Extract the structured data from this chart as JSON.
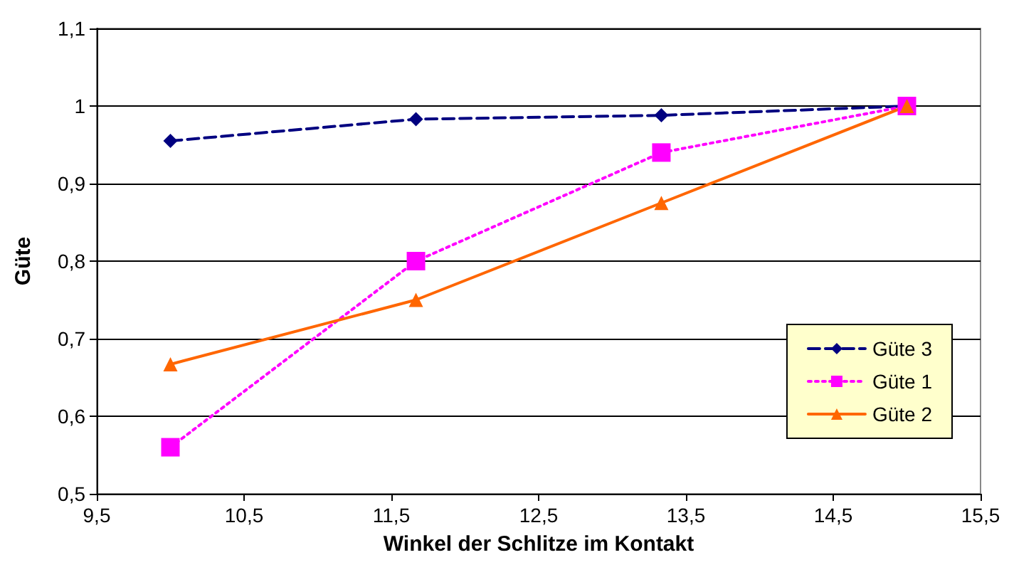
{
  "chart_data": {
    "type": "line",
    "xlabel": "Winkel der Schlitze im Kontakt",
    "ylabel": "Güte",
    "x": [
      10,
      11.667,
      13.333,
      15
    ],
    "series": [
      {
        "name": "Güte 3",
        "color": "#000080",
        "values": [
          0.955,
          0.983,
          0.988,
          1.0
        ],
        "marker": "diamond",
        "line_style": "dashed"
      },
      {
        "name": "Güte 1",
        "color": "#ff00ff",
        "values": [
          0.56,
          0.8,
          0.94,
          1.0
        ],
        "marker": "square",
        "line_style": "dotted"
      },
      {
        "name": "Güte 2",
        "color": "#ff6600",
        "values": [
          0.667,
          0.75,
          0.875,
          1.0
        ],
        "marker": "triangle",
        "line_style": "solid"
      }
    ],
    "xlim": [
      9.5,
      15.5
    ],
    "xticks": [
      {
        "value": 9.5,
        "label": "9,5"
      },
      {
        "value": 10.5,
        "label": "10,5"
      },
      {
        "value": 11.5,
        "label": "11,5"
      },
      {
        "value": 12.5,
        "label": "12,5"
      },
      {
        "value": 13.5,
        "label": "13,5"
      },
      {
        "value": 14.5,
        "label": "14,5"
      },
      {
        "value": 15.5,
        "label": "15,5"
      }
    ],
    "ylim": [
      0.5,
      1.1
    ],
    "yticks": [
      {
        "value": 0.5,
        "label": "0,5"
      },
      {
        "value": 0.6,
        "label": "0,6"
      },
      {
        "value": 0.7,
        "label": "0,7"
      },
      {
        "value": 0.8,
        "label": "0,8"
      },
      {
        "value": 0.9,
        "label": "0,9"
      },
      {
        "value": 1,
        "label": "1"
      },
      {
        "value": 1.1,
        "label": "1,1"
      }
    ],
    "grid": "y",
    "legend": "right"
  }
}
